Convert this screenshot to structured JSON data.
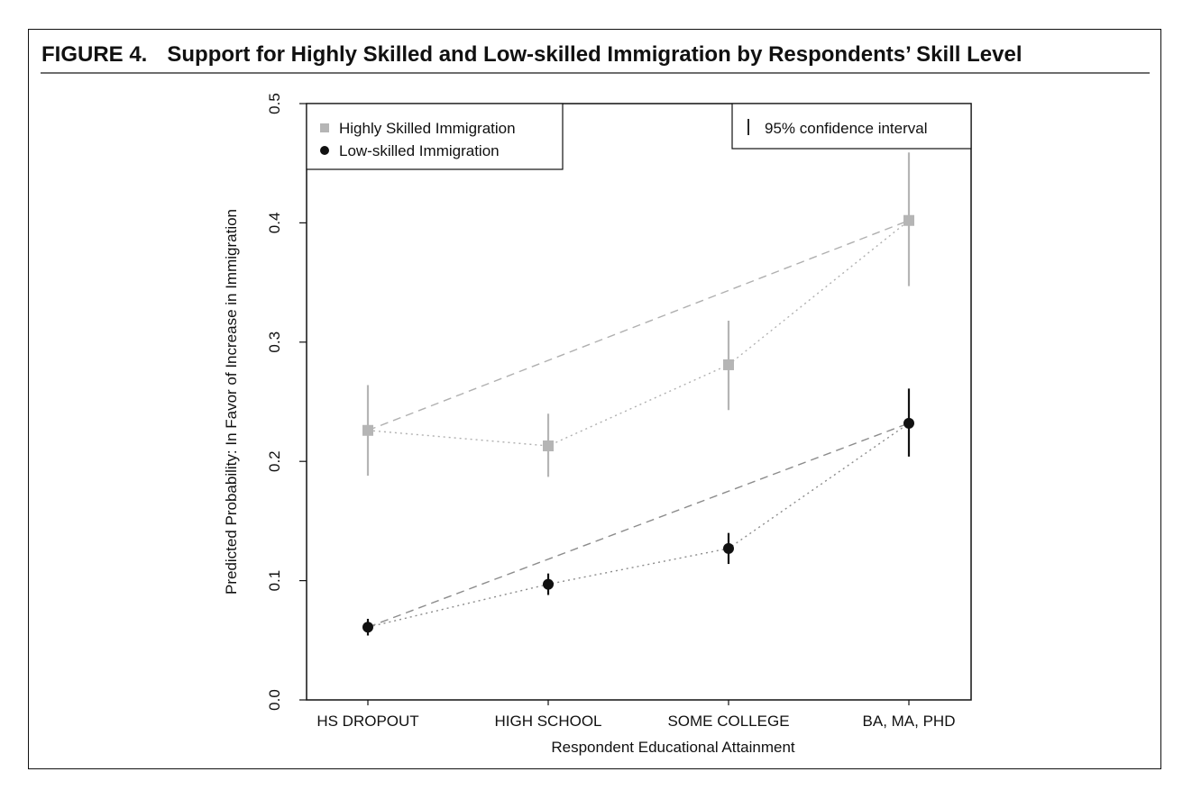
{
  "figure": {
    "number_label": "FIGURE 4.",
    "title": "Support for Highly Skilled and Low-skilled Immigration by Respondents’ Skill Level"
  },
  "chart_data": {
    "type": "scatter",
    "x_categories": [
      "HS DROPOUT",
      "HIGH SCHOOL",
      "SOME COLLEGE",
      "BA, MA, PHD"
    ],
    "xlabel": "Respondent Educational Attainment",
    "ylabel": "Predicted Probability: In Favor of Increase in Immigration",
    "ylim": [
      0.0,
      0.5
    ],
    "y_ticks": [
      0.0,
      0.1,
      0.2,
      0.3,
      0.4,
      0.5
    ],
    "y_tick_labels": [
      "0.0",
      "0.1",
      "0.2",
      "0.3",
      "0.4",
      "0.5"
    ],
    "grid": false,
    "legend": {
      "placement": "top-left",
      "entries": [
        {
          "label": "Highly Skilled Immigration",
          "marker": "square",
          "color": "#b5b5b5"
        },
        {
          "label": "Low-skilled Immigration",
          "marker": "circle",
          "color": "#111111"
        }
      ]
    },
    "ci_legend": {
      "placement": "top-right",
      "label": "95% confidence interval"
    },
    "series": [
      {
        "name": "Highly Skilled Immigration",
        "color": "#b5b5b5",
        "marker": "square",
        "values": [
          0.226,
          0.213,
          0.281,
          0.402
        ],
        "ci_low": [
          0.188,
          0.187,
          0.243,
          0.347
        ],
        "ci_high": [
          0.264,
          0.24,
          0.318,
          0.459
        ]
      },
      {
        "name": "Low-skilled Immigration",
        "color": "#111111",
        "marker": "circle",
        "values": [
          0.061,
          0.097,
          0.127,
          0.232
        ],
        "ci_low": [
          0.054,
          0.088,
          0.114,
          0.204
        ],
        "ci_high": [
          0.068,
          0.106,
          0.14,
          0.261
        ]
      }
    ]
  }
}
